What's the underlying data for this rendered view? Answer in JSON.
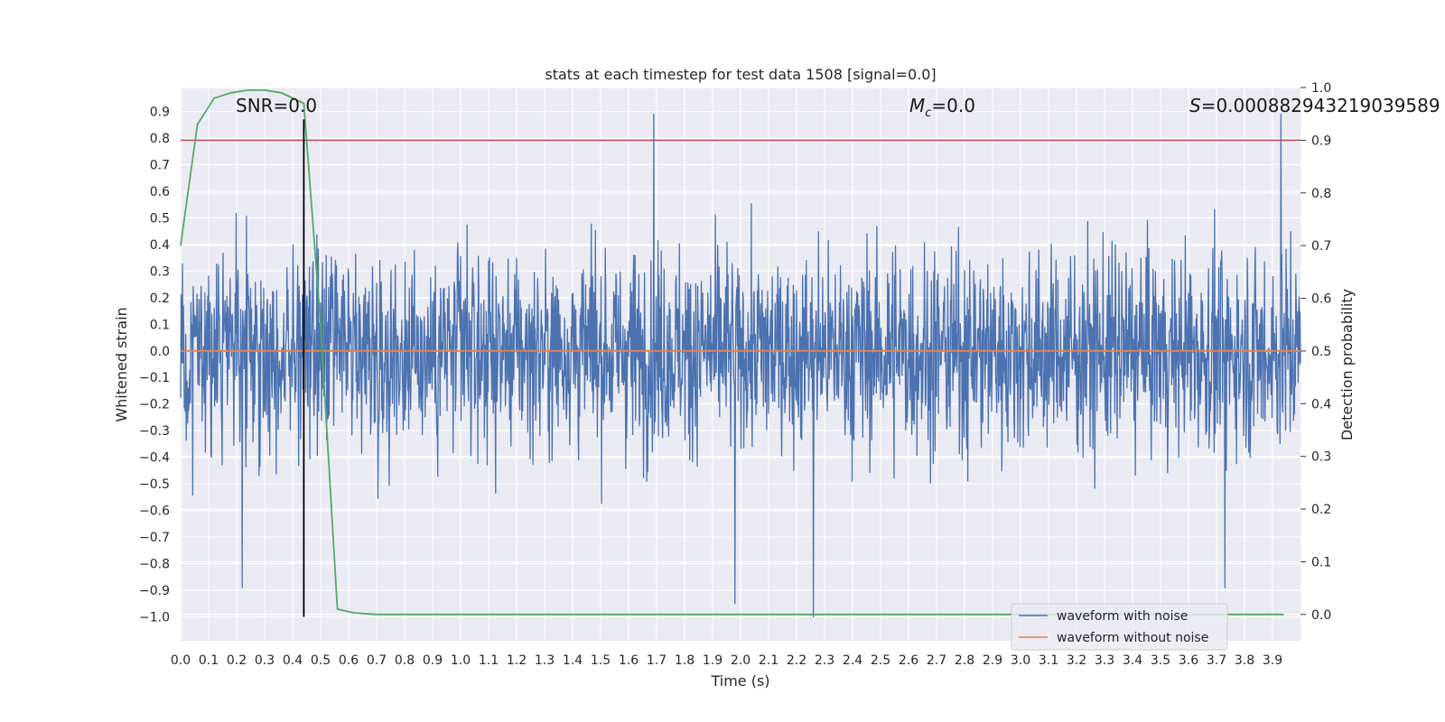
{
  "chart_data": {
    "type": "line",
    "title": "stats at each timestep for test data 1508 [signal=0.0]",
    "xlabel": "Time (s)",
    "ylabel": "Whitened strain",
    "ylabel_right": "Detection probability",
    "xlim": [
      0.0,
      4.0
    ],
    "ylim": [
      -1.09,
      0.99
    ],
    "ylim_right": [
      -0.05,
      1.0
    ],
    "x_ticks": [
      "0.0",
      "0.1",
      "0.2",
      "0.3",
      "0.4",
      "0.5",
      "0.6",
      "0.7",
      "0.8",
      "0.9",
      "1.0",
      "1.1",
      "1.2",
      "1.3",
      "1.4",
      "1.5",
      "1.6",
      "1.7",
      "1.8",
      "1.9",
      "2.0",
      "2.1",
      "2.2",
      "2.3",
      "2.4",
      "2.5",
      "2.6",
      "2.7",
      "2.8",
      "2.9",
      "3.0",
      "3.1",
      "3.2",
      "3.3",
      "3.4",
      "3.5",
      "3.6",
      "3.7",
      "3.8",
      "3.9"
    ],
    "y_ticks": [
      "0.9",
      "0.8",
      "0.7",
      "0.6",
      "0.5",
      "0.4",
      "0.3",
      "0.2",
      "0.1",
      "0.0",
      "−0.1",
      "−0.2",
      "−0.3",
      "−0.4",
      "−0.5",
      "−0.6",
      "−0.7",
      "−0.8",
      "−0.9",
      "−1.0"
    ],
    "y_tick_values": [
      0.9,
      0.8,
      0.7,
      0.6,
      0.5,
      0.4,
      0.3,
      0.2,
      0.1,
      0.0,
      -0.1,
      -0.2,
      -0.3,
      -0.4,
      -0.5,
      -0.6,
      -0.7,
      -0.8,
      -0.9,
      -1.0
    ],
    "y_right_ticks": [
      "1.0",
      "0.9",
      "0.8",
      "0.7",
      "0.6",
      "0.5",
      "0.4",
      "0.3",
      "0.2",
      "0.1",
      "0.0"
    ],
    "y_right_tick_values": [
      1.0,
      0.9,
      0.8,
      0.7,
      0.6,
      0.5,
      0.4,
      0.3,
      0.2,
      0.1,
      0.0
    ],
    "grid": true,
    "legend_position": "bottom-right",
    "annotations": {
      "snr": "SNR=0.0",
      "mc_symbol": "M",
      "mc_sub": "c",
      "mc_value": "=0.0",
      "s_symbol": "S",
      "s_value": "=0.000882943219039589"
    },
    "series": [
      {
        "name": "waveform with noise",
        "color": "#4c72b0",
        "axis": "left",
        "description_values": "dense noise, amplitude roughly within ±0.9",
        "peaks": [
          {
            "x": 1.69,
            "y": 0.89
          },
          {
            "x": 3.93,
            "y": 0.89
          },
          {
            "x": 2.26,
            "y": -1.0
          },
          {
            "x": 1.98,
            "y": -0.95
          },
          {
            "x": 0.22,
            "y": -0.89
          },
          {
            "x": 3.73,
            "y": -0.89
          }
        ]
      },
      {
        "name": "waveform without noise",
        "color": "#dd8452",
        "axis": "left",
        "x": [
          0.0,
          4.0
        ],
        "y": [
          0.0,
          0.0
        ]
      },
      {
        "color": "#55a868",
        "axis": "right",
        "x": [
          0.0,
          0.06,
          0.12,
          0.18,
          0.24,
          0.3,
          0.36,
          0.44,
          0.5,
          0.56,
          0.62,
          0.7,
          1.0,
          2.0,
          3.0,
          3.94
        ],
        "y": [
          0.7,
          0.93,
          0.98,
          0.99,
          0.995,
          0.995,
          0.99,
          0.97,
          0.55,
          0.01,
          0.003,
          0.0,
          0.0,
          0.0,
          0.0,
          0.0
        ]
      }
    ],
    "threshold": {
      "axis": "right",
      "value": 0.9,
      "color": "#c44e52"
    },
    "marker": {
      "x": 0.44,
      "y_from": -1.0,
      "y_to": 0.87,
      "color": "#000000"
    }
  }
}
